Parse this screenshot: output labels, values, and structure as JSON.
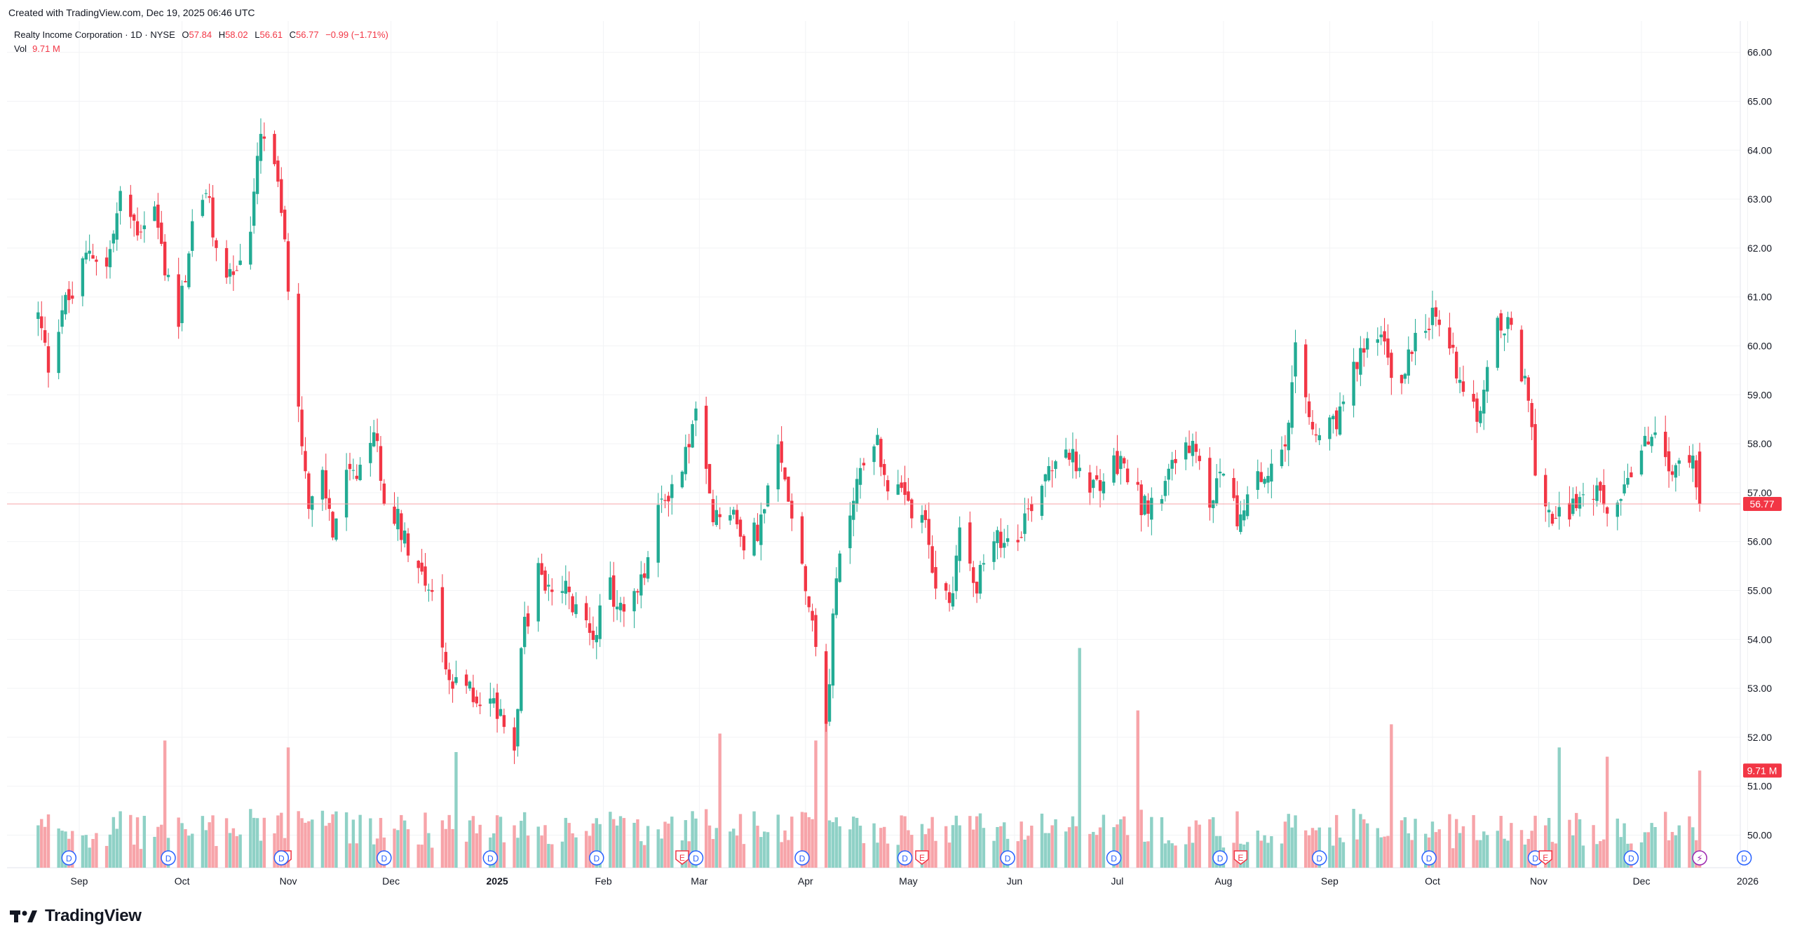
{
  "header": {
    "created_note": "Created with TradingView.com, Dec 19, 2025 06:46 UTC"
  },
  "legend": {
    "symbol": "Realty Income Corporation · 1D · NYSE",
    "o_label": "O",
    "o_value": "57.84",
    "h_label": "H",
    "h_value": "58.02",
    "l_label": "L",
    "l_value": "56.61",
    "c_label": "C",
    "c_value": "56.77",
    "change": "−0.99 (−1.71%)",
    "vol_label": "Vol",
    "vol_value": "9.71 M"
  },
  "brand": {
    "name": "TradingView"
  },
  "colors": {
    "up": "#22ab94",
    "down": "#f23645",
    "vol_up": "#8fd1c6",
    "vol_down": "#f7a4a9",
    "grid": "#f2f3f5",
    "event_blue": "#2962ff",
    "event_red": "#f23645",
    "event_purple": "#9c27b0"
  },
  "chart_data": {
    "type": "candlestick",
    "title": "Realty Income Corporation · 1D · NYSE",
    "xlabel": "",
    "ylabel": "",
    "ylim": [
      49.6,
      66.4
    ],
    "y_ticks": [
      "66.00",
      "65.00",
      "64.00",
      "63.00",
      "62.00",
      "61.00",
      "60.00",
      "59.00",
      "58.00",
      "57.00",
      "56.00",
      "55.00",
      "54.00",
      "53.00",
      "52.00",
      "51.00",
      "50.00"
    ],
    "x_ticks": [
      "Sep",
      "Oct",
      "Nov",
      "Dec",
      "2025",
      "Feb",
      "Mar",
      "Apr",
      "May",
      "Jun",
      "Jul",
      "Aug",
      "Sep",
      "Oct",
      "Nov",
      "Dec",
      "2026"
    ],
    "last_price": "56.77",
    "last_volume": "9.71 M",
    "price_path": [
      [
        "2024-08-20",
        60.6
      ],
      [
        "2024-08-23",
        59.6
      ],
      [
        "2024-08-27",
        60.8
      ],
      [
        "2024-08-30",
        61.0
      ],
      [
        "2024-09-04",
        62.0
      ],
      [
        "2024-09-09",
        61.6
      ],
      [
        "2024-09-13",
        63.0
      ],
      [
        "2024-09-18",
        62.4
      ],
      [
        "2024-09-23",
        62.8
      ],
      [
        "2024-09-26",
        61.6
      ],
      [
        "2024-09-30",
        60.6
      ],
      [
        "2024-10-04",
        62.4
      ],
      [
        "2024-10-08",
        63.2
      ],
      [
        "2024-10-11",
        61.9
      ],
      [
        "2024-10-16",
        61.4
      ],
      [
        "2024-10-21",
        62.4
      ],
      [
        "2024-10-24",
        64.3
      ],
      [
        "2024-10-28",
        63.7
      ],
      [
        "2024-10-31",
        62.0
      ],
      [
        "2024-11-04",
        59.0
      ],
      [
        "2024-11-07",
        56.6
      ],
      [
        "2024-11-11",
        57.3
      ],
      [
        "2024-11-14",
        56.2
      ],
      [
        "2024-11-18",
        57.3
      ],
      [
        "2024-11-22",
        57.3
      ],
      [
        "2024-11-26",
        58.3
      ],
      [
        "2024-11-29",
        57.0
      ],
      [
        "2024-12-04",
        56.3
      ],
      [
        "2024-12-09",
        55.5
      ],
      [
        "2024-12-13",
        55.0
      ],
      [
        "2024-12-18",
        53.0
      ],
      [
        "2024-12-23",
        53.0
      ],
      [
        "2024-12-27",
        52.8
      ],
      [
        "2025-01-02",
        52.6
      ],
      [
        "2025-01-06",
        51.8
      ],
      [
        "2025-01-08",
        53.9
      ],
      [
        "2025-01-13",
        55.4
      ],
      [
        "2025-01-17",
        54.8
      ],
      [
        "2025-01-21",
        55.0
      ],
      [
        "2025-01-24",
        54.5
      ],
      [
        "2025-01-29",
        54.2
      ],
      [
        "2025-02-03",
        55.0
      ],
      [
        "2025-02-07",
        54.5
      ],
      [
        "2025-02-12",
        55.1
      ],
      [
        "2025-02-18",
        56.8
      ],
      [
        "2025-02-24",
        57.5
      ],
      [
        "2025-02-28",
        58.6
      ],
      [
        "2025-03-05",
        56.4
      ],
      [
        "2025-03-10",
        56.8
      ],
      [
        "2025-03-14",
        55.8
      ],
      [
        "2025-03-19",
        56.4
      ],
      [
        "2025-03-24",
        57.8
      ],
      [
        "2025-03-28",
        56.7
      ],
      [
        "2025-04-03",
        54.4
      ],
      [
        "2025-04-07",
        52.4
      ],
      [
        "2025-04-10",
        55.2
      ],
      [
        "2025-04-15",
        57.0
      ],
      [
        "2025-04-21",
        58.2
      ],
      [
        "2025-04-25",
        57.2
      ],
      [
        "2025-04-30",
        56.8
      ],
      [
        "2025-05-06",
        56.2
      ],
      [
        "2025-05-09",
        55.2
      ],
      [
        "2025-05-13",
        54.7
      ],
      [
        "2025-05-16",
        56.2
      ],
      [
        "2025-05-21",
        55.2
      ],
      [
        "2025-05-27",
        56.0
      ],
      [
        "2025-06-02",
        56.2
      ],
      [
        "2025-06-06",
        56.8
      ],
      [
        "2025-06-11",
        57.6
      ],
      [
        "2025-06-16",
        58.0
      ],
      [
        "2025-06-20",
        57.3
      ],
      [
        "2025-06-25",
        57.1
      ],
      [
        "2025-06-30",
        57.6
      ],
      [
        "2025-07-03",
        57.5
      ],
      [
        "2025-07-08",
        56.8
      ],
      [
        "2025-07-14",
        56.8
      ],
      [
        "2025-07-17",
        57.8
      ],
      [
        "2025-07-23",
        57.8
      ],
      [
        "2025-07-28",
        56.8
      ],
      [
        "2025-07-31",
        57.4
      ],
      [
        "2025-08-06",
        56.4
      ],
      [
        "2025-08-11",
        57.2
      ],
      [
        "2025-08-15",
        57.4
      ],
      [
        "2025-08-19",
        57.8
      ],
      [
        "2025-08-22",
        59.8
      ],
      [
        "2025-08-27",
        58.2
      ],
      [
        "2025-09-02",
        58.3
      ],
      [
        "2025-09-05",
        58.8
      ],
      [
        "2025-09-10",
        59.8
      ],
      [
        "2025-09-15",
        60.4
      ],
      [
        "2025-09-18",
        59.6
      ],
      [
        "2025-09-22",
        59.2
      ],
      [
        "2025-09-26",
        60.4
      ],
      [
        "2025-10-01",
        60.6
      ],
      [
        "2025-10-06",
        60.0
      ],
      [
        "2025-10-10",
        59.2
      ],
      [
        "2025-10-15",
        58.6
      ],
      [
        "2025-10-20",
        60.4
      ],
      [
        "2025-10-24",
        60.3
      ],
      [
        "2025-10-28",
        59.2
      ],
      [
        "2025-10-31",
        57.6
      ],
      [
        "2025-11-04",
        56.6
      ],
      [
        "2025-11-07",
        56.6
      ],
      [
        "2025-11-12",
        56.8
      ],
      [
        "2025-11-17",
        57.0
      ],
      [
        "2025-11-21",
        56.6
      ],
      [
        "2025-11-26",
        57.2
      ],
      [
        "2025-12-01",
        57.8
      ],
      [
        "2025-12-04",
        58.2
      ],
      [
        "2025-12-08",
        57.6
      ],
      [
        "2025-12-12",
        57.4
      ],
      [
        "2025-12-16",
        57.84
      ],
      [
        "2025-12-18",
        56.77
      ]
    ],
    "volume_scale": "relative",
    "volume_spikes": [
      [
        "2024-09-26",
        0.55
      ],
      [
        "2024-11-01",
        0.52
      ],
      [
        "2024-12-20",
        0.5
      ],
      [
        "2025-03-07",
        0.58
      ],
      [
        "2025-04-04",
        0.55
      ],
      [
        "2025-04-07",
        0.88
      ],
      [
        "2025-06-20",
        0.95
      ],
      [
        "2025-07-07",
        0.68
      ],
      [
        "2025-09-19",
        0.62
      ],
      [
        "2025-11-07",
        0.52
      ],
      [
        "2025-11-21",
        0.48
      ],
      [
        "2025-12-18",
        0.42
      ]
    ],
    "event_markers": [
      {
        "date": "2024-08-29",
        "type": "D"
      },
      {
        "date": "2024-09-27",
        "type": "D"
      },
      {
        "date": "2024-10-31",
        "type": "E"
      },
      {
        "date": "2024-10-30",
        "type": "D"
      },
      {
        "date": "2024-11-29",
        "type": "D"
      },
      {
        "date": "2024-12-30",
        "type": "D"
      },
      {
        "date": "2025-01-30",
        "type": "D"
      },
      {
        "date": "2025-02-24",
        "type": "E"
      },
      {
        "date": "2025-02-28",
        "type": "D"
      },
      {
        "date": "2025-03-31",
        "type": "D"
      },
      {
        "date": "2025-04-30",
        "type": "D"
      },
      {
        "date": "2025-05-05",
        "type": "E"
      },
      {
        "date": "2025-05-30",
        "type": "D"
      },
      {
        "date": "2025-06-30",
        "type": "D"
      },
      {
        "date": "2025-07-31",
        "type": "D"
      },
      {
        "date": "2025-08-06",
        "type": "E"
      },
      {
        "date": "2025-08-29",
        "type": "D"
      },
      {
        "date": "2025-09-30",
        "type": "D"
      },
      {
        "date": "2025-10-31",
        "type": "D"
      },
      {
        "date": "2025-11-03",
        "type": "E"
      },
      {
        "date": "2025-11-28",
        "type": "D"
      },
      {
        "date": "2025-12-18",
        "type": "S"
      },
      {
        "date": "2025-12-31",
        "type": "D"
      }
    ]
  }
}
